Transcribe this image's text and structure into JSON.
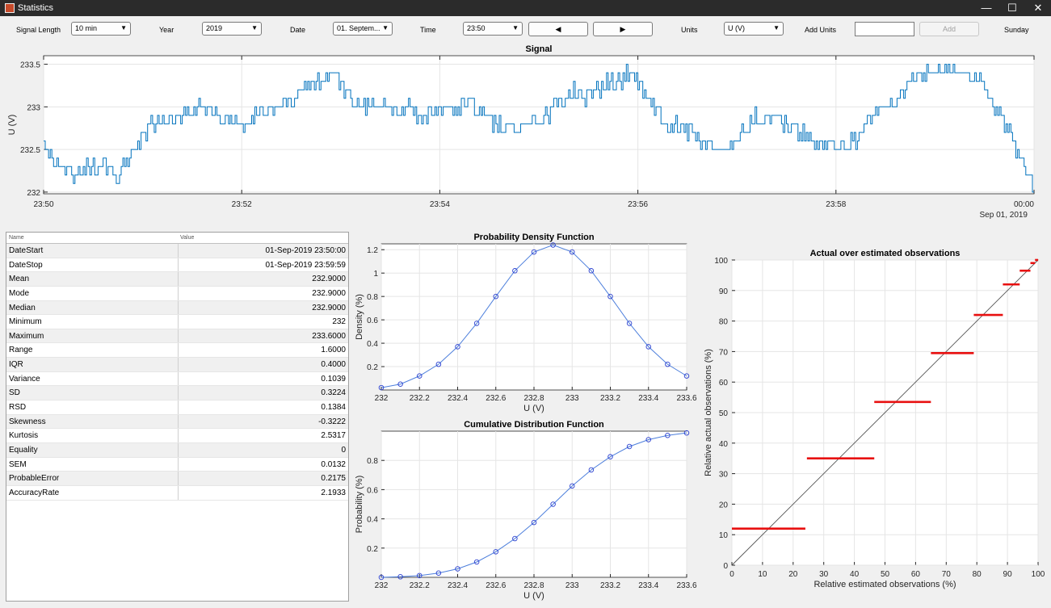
{
  "window": {
    "title": "Statistics",
    "minimize": "—",
    "maximize": "☐",
    "close": "✕"
  },
  "toolbar": {
    "signal_length_label": "Signal Length",
    "signal_length_value": "10 min",
    "year_label": "Year",
    "year_value": "2019",
    "date_label": "Date",
    "date_value": "01. Septem...",
    "time_label": "Time",
    "time_value": "23:50",
    "prev_label": "◀",
    "next_label": "▶",
    "units_label": "Units",
    "units_value": "U (V)",
    "add_units_label": "Add Units",
    "add_units_value": "",
    "add_button": "Add",
    "weekday": "Sunday"
  },
  "stats_table": {
    "headers": [
      "Name",
      "Value"
    ],
    "rows": [
      [
        "DateStart",
        "01-Sep-2019 23:50:00"
      ],
      [
        "DateStop",
        "01-Sep-2019 23:59:59"
      ],
      [
        "Mean",
        "232.9000"
      ],
      [
        "Mode",
        "232.9000"
      ],
      [
        "Median",
        "232.9000"
      ],
      [
        "Minimum",
        "232"
      ],
      [
        "Maximum",
        "233.6000"
      ],
      [
        "Range",
        "1.6000"
      ],
      [
        "IQR",
        "0.4000"
      ],
      [
        "Variance",
        "0.1039"
      ],
      [
        "SD",
        "0.3224"
      ],
      [
        "RSD",
        "0.1384"
      ],
      [
        "Skewness",
        "-0.3222"
      ],
      [
        "Kurtosis",
        "2.5317"
      ],
      [
        "Equality",
        "0"
      ],
      [
        "SEM",
        "0.0132"
      ],
      [
        "ProbableError",
        "0.2175"
      ],
      [
        "AccuracyRate",
        "2.1933"
      ]
    ]
  },
  "chart_data": [
    {
      "id": "signal",
      "type": "line",
      "title": "Signal",
      "ylabel": "U (V)",
      "xlabel": "",
      "xticks": [
        "23:50",
        "23:52",
        "23:54",
        "23:56",
        "23:58",
        "00:00"
      ],
      "x_sublabel": "Sep 01, 2019",
      "yticks": [
        232,
        232.5,
        233,
        233.5
      ],
      "yticklabels": [
        "232",
        "232.5",
        "233",
        "233.5"
      ],
      "xlim_minutes": [
        0,
        10
      ],
      "ylim": [
        231.98,
        233.6
      ],
      "grid": true,
      "color": "#0072bd",
      "keypoints": [
        [
          0.0,
          232.6
        ],
        [
          0.08,
          232.4
        ],
        [
          0.15,
          232.3
        ],
        [
          0.3,
          232.2
        ],
        [
          0.55,
          232.3
        ],
        [
          0.75,
          232.2
        ],
        [
          0.95,
          232.6
        ],
        [
          1.1,
          232.8
        ],
        [
          1.4,
          232.9
        ],
        [
          1.55,
          233.0
        ],
        [
          1.75,
          232.9
        ],
        [
          2.0,
          232.8
        ],
        [
          2.2,
          232.9
        ],
        [
          2.4,
          233.0
        ],
        [
          2.65,
          233.25
        ],
        [
          2.9,
          233.35
        ],
        [
          3.05,
          233.2
        ],
        [
          3.2,
          233.0
        ],
        [
          3.4,
          233.05
        ],
        [
          3.6,
          232.95
        ],
        [
          3.8,
          232.9
        ],
        [
          4.05,
          233.0
        ],
        [
          4.3,
          233.05
        ],
        [
          4.55,
          232.8
        ],
        [
          4.8,
          232.75
        ],
        [
          5.0,
          232.85
        ],
        [
          5.25,
          233.1
        ],
        [
          5.5,
          233.2
        ],
        [
          5.75,
          233.3
        ],
        [
          5.95,
          233.4
        ],
        [
          6.1,
          233.1
        ],
        [
          6.25,
          232.85
        ],
        [
          6.45,
          232.75
        ],
        [
          6.65,
          232.6
        ],
        [
          6.9,
          232.5
        ],
        [
          7.15,
          232.8
        ],
        [
          7.35,
          232.85
        ],
        [
          7.55,
          232.75
        ],
        [
          7.75,
          232.6
        ],
        [
          7.95,
          232.55
        ],
        [
          8.15,
          232.6
        ],
        [
          8.35,
          232.85
        ],
        [
          8.6,
          233.1
        ],
        [
          8.8,
          233.35
        ],
        [
          9.05,
          233.45
        ],
        [
          9.25,
          233.4
        ],
        [
          9.45,
          233.3
        ],
        [
          9.65,
          232.9
        ],
        [
          9.8,
          232.55
        ],
        [
          9.92,
          232.2
        ],
        [
          10.0,
          232.0
        ]
      ]
    },
    {
      "id": "pdf",
      "type": "line",
      "title": "Probability Density Function",
      "xlabel": "U (V)",
      "ylabel": "Density (%)",
      "x": [
        232,
        232.1,
        232.2,
        232.3,
        232.4,
        232.5,
        232.6,
        232.7,
        232.8,
        232.9,
        233,
        233.1,
        233.2,
        233.3,
        233.4,
        233.5,
        233.6
      ],
      "y": [
        0.02,
        0.05,
        0.12,
        0.22,
        0.37,
        0.57,
        0.8,
        1.02,
        1.18,
        1.24,
        1.18,
        1.02,
        0.8,
        0.57,
        0.37,
        0.22,
        0.12
      ],
      "xticks": [
        232,
        232.2,
        232.4,
        232.6,
        232.8,
        233,
        233.2,
        233.4,
        233.6
      ],
      "xticklabels": [
        "232",
        "232.2",
        "232.4",
        "232.6",
        "232.8",
        "233",
        "233.2",
        "233.4",
        "233.6"
      ],
      "yticks": [
        0.2,
        0.4,
        0.6,
        0.8,
        1.0,
        1.2
      ],
      "yticklabels": [
        "0.2",
        "0.4",
        "0.6",
        "0.8",
        "1",
        "1.2"
      ],
      "xlim": [
        232,
        233.6
      ],
      "ylim": [
        0,
        1.25
      ],
      "grid": true,
      "color": "#4d7fdc",
      "marker_color": "#2a3fd0"
    },
    {
      "id": "cdf",
      "type": "line",
      "title": "Cumulative Distribution Function",
      "xlabel": "U (V)",
      "ylabel": "Probability (%)",
      "x": [
        232,
        232.1,
        232.2,
        232.3,
        232.4,
        232.5,
        232.6,
        232.7,
        232.8,
        232.9,
        233,
        233.1,
        233.2,
        233.3,
        233.4,
        233.5,
        233.6
      ],
      "y": [
        0.0,
        0.004,
        0.012,
        0.029,
        0.058,
        0.105,
        0.175,
        0.265,
        0.375,
        0.5,
        0.625,
        0.735,
        0.825,
        0.895,
        0.942,
        0.971,
        0.988
      ],
      "xticks": [
        232,
        232.2,
        232.4,
        232.6,
        232.8,
        233,
        233.2,
        233.4,
        233.6
      ],
      "xticklabels": [
        "232",
        "232.2",
        "232.4",
        "232.6",
        "232.8",
        "233",
        "233.2",
        "233.4",
        "233.6"
      ],
      "yticks": [
        0.2,
        0.4,
        0.6,
        0.8
      ],
      "yticklabels": [
        "0.2",
        "0.4",
        "0.6",
        "0.8"
      ],
      "xlim": [
        232,
        233.6
      ],
      "ylim": [
        0,
        1.0
      ],
      "grid": true,
      "color": "#4d7fdc",
      "marker_color": "#2a3fd0"
    },
    {
      "id": "qq",
      "type": "scatter",
      "title": "Actual over estimated observations",
      "xlabel": "Relative estimated observations (%)",
      "ylabel": "Relative actual observations (%)",
      "xticks": [
        0,
        10,
        20,
        30,
        40,
        50,
        60,
        70,
        80,
        90,
        100
      ],
      "yticks": [
        0,
        10,
        20,
        30,
        40,
        50,
        60,
        70,
        80,
        90,
        100
      ],
      "xlim": [
        0,
        100
      ],
      "ylim": [
        0,
        100
      ],
      "grid": true,
      "reference_line": [
        [
          0,
          0
        ],
        [
          100,
          100
        ]
      ],
      "segments": [
        {
          "x0": 0,
          "x1": 24,
          "y": 12
        },
        {
          "x0": 24.5,
          "x1": 46.5,
          "y": 35
        },
        {
          "x0": 46.5,
          "x1": 65,
          "y": 53.5
        },
        {
          "x0": 65,
          "x1": 79,
          "y": 69.5
        },
        {
          "x0": 79,
          "x1": 88.5,
          "y": 82
        },
        {
          "x0": 88.5,
          "x1": 94,
          "y": 92
        },
        {
          "x0": 94,
          "x1": 97.5,
          "y": 96.5
        },
        {
          "x0": 97.5,
          "x1": 99,
          "y": 99
        },
        {
          "x0": 99,
          "x1": 100,
          "y": 100
        }
      ],
      "color": "#e81010"
    }
  ]
}
